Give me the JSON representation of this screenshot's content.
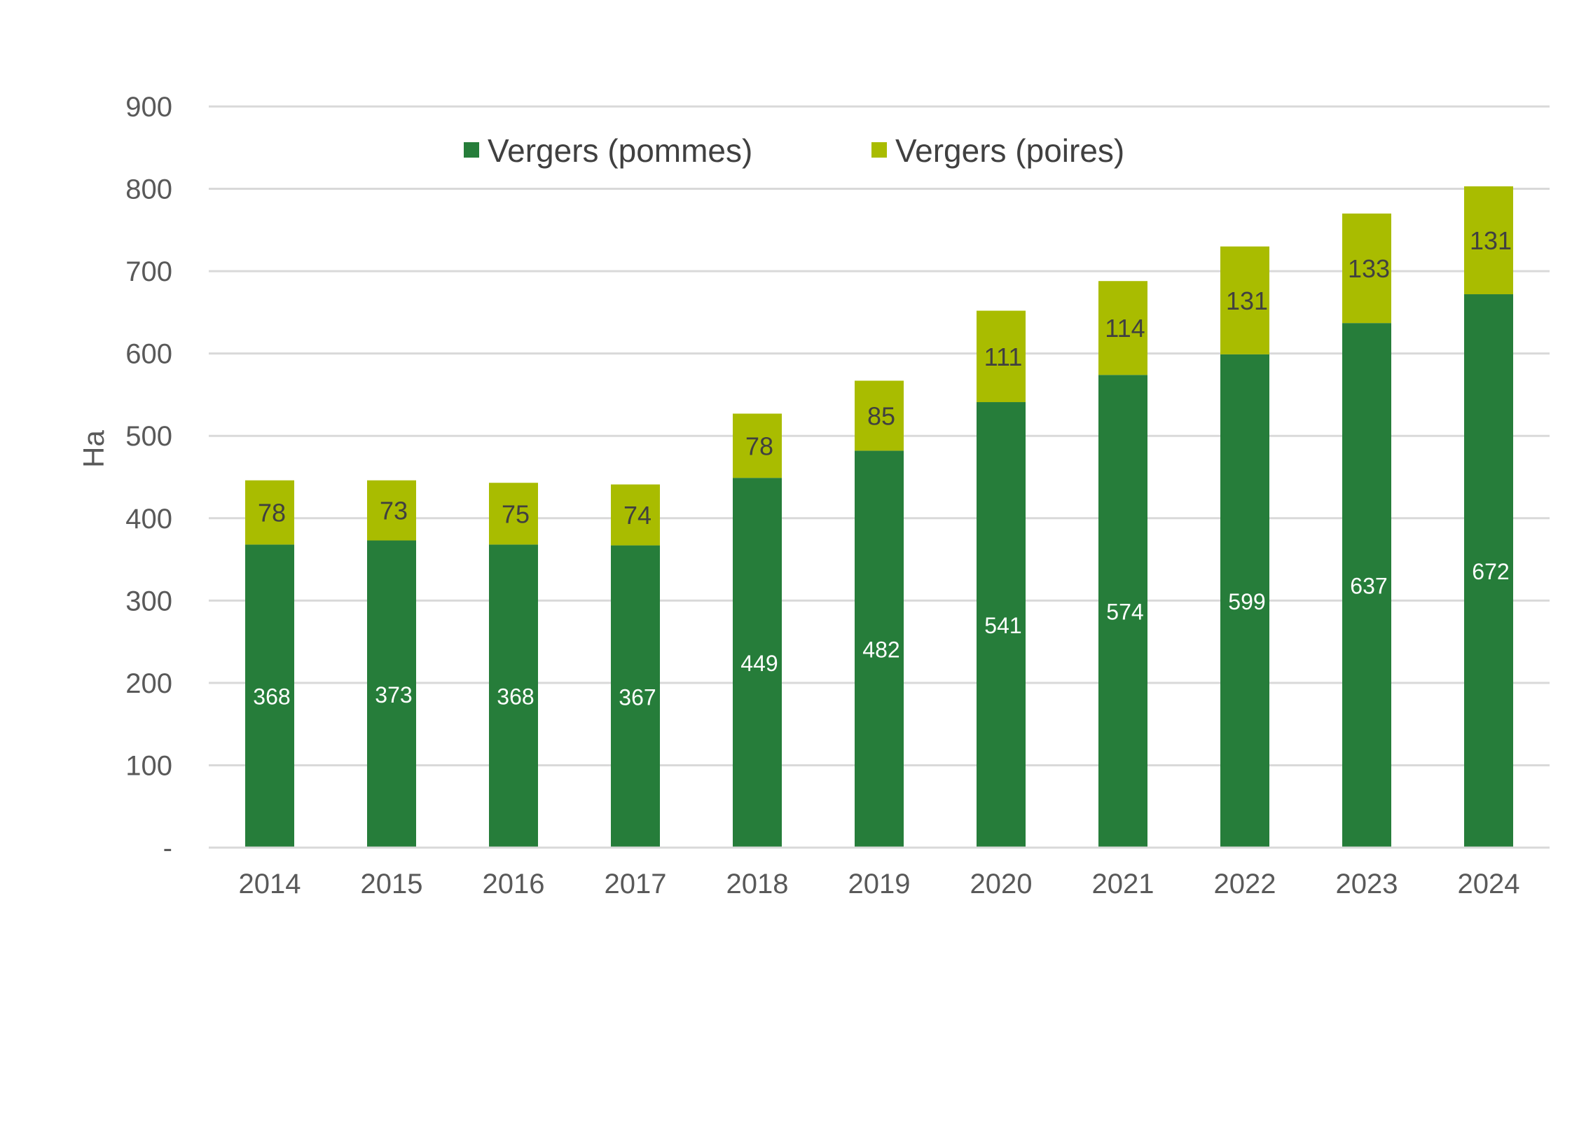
{
  "chart_data": {
    "type": "bar",
    "stacked": true,
    "title": "",
    "xlabel": "",
    "ylabel": "Ha",
    "ylim": [
      0,
      900
    ],
    "y_ticks": [
      0,
      100,
      200,
      300,
      400,
      500,
      600,
      700,
      800,
      900
    ],
    "y_tick_labels": [
      "-",
      "100",
      "200",
      "300",
      "400",
      "500",
      "600",
      "700",
      "800",
      "900"
    ],
    "grid": true,
    "legend_position": "top",
    "categories": [
      "2014",
      "2015",
      "2016",
      "2017",
      "2018",
      "2019",
      "2020",
      "2021",
      "2022",
      "2023",
      "2024"
    ],
    "series": [
      {
        "name": "Vergers (pommes)",
        "color": "#267d3a",
        "label_color": "#ffffff",
        "values": [
          368,
          373,
          368,
          367,
          449,
          482,
          541,
          574,
          599,
          637,
          672
        ]
      },
      {
        "name": "Vergers (poires)",
        "color": "#a9bc00",
        "label_color": "#404040",
        "values": [
          78,
          73,
          75,
          74,
          78,
          85,
          111,
          114,
          131,
          133,
          131
        ]
      }
    ]
  }
}
